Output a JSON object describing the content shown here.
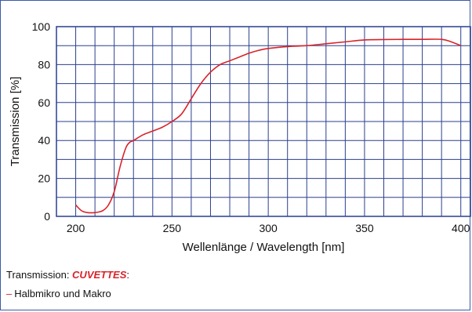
{
  "chart_data": {
    "type": "line",
    "xlabel": "Wellenlänge / Wavelength [nm]",
    "ylabel": "Transmission [%]",
    "xlim": [
      190,
      405
    ],
    "ylim": [
      0,
      100
    ],
    "x_ticks": [
      200,
      250,
      300,
      350,
      400
    ],
    "y_ticks": [
      0,
      20,
      40,
      60,
      80,
      100
    ],
    "grid": true,
    "series": [
      {
        "name": "Halbmikro und Makro",
        "color": "#d8232a",
        "x": [
          200,
          203,
          206,
          210,
          214,
          217,
          220,
          223,
          226,
          228,
          230,
          235,
          240,
          245,
          250,
          255,
          260,
          265,
          270,
          275,
          280,
          285,
          290,
          295,
          300,
          310,
          320,
          330,
          340,
          350,
          360,
          370,
          380,
          390,
          395,
          400
        ],
        "y": [
          6,
          3,
          2,
          2,
          3,
          6,
          13,
          26,
          36,
          39,
          40,
          43,
          45,
          47,
          50,
          54,
          62,
          70,
          76,
          80,
          82,
          84,
          86,
          87.5,
          88.5,
          89.5,
          90,
          91,
          92,
          93,
          93.2,
          93.3,
          93.3,
          93.3,
          92,
          90
        ]
      }
    ]
  },
  "caption": {
    "prefix": "Transmission: ",
    "brand": "CUVETTES",
    "suffix": ":",
    "legend_dash": "–",
    "legend_label": "Halbmikro und Makro"
  }
}
